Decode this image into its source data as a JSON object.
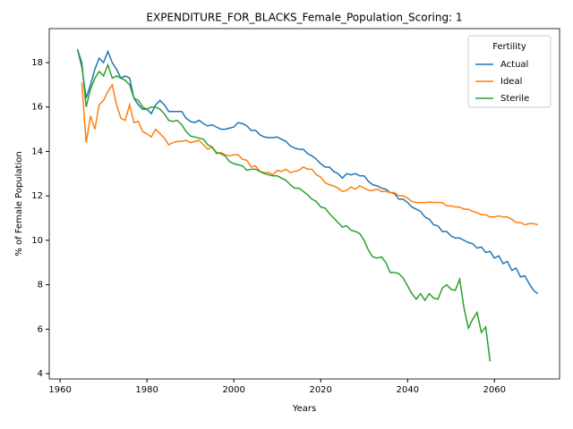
{
  "chart_data": {
    "type": "line",
    "title": "EXPENDITURE_FOR_BLACKS_Female_Population_Scoring: 1",
    "x_label": "Years",
    "y_label": "% of Female Population",
    "legend_title": "Fertility",
    "legend": "upper right",
    "x": [
      1964,
      1965,
      1966,
      1967,
      1968,
      1969,
      1970,
      1971,
      1972,
      1973,
      1974,
      1975,
      1976,
      1977,
      1978,
      1979,
      1980,
      1981,
      1982,
      1983,
      1984,
      1985,
      1986,
      1987,
      1988,
      1989,
      1990,
      1991,
      1992,
      1993,
      1994,
      1995,
      1996,
      1997,
      1998,
      1999,
      2000,
      2001,
      2002,
      2003,
      2004,
      2005,
      2006,
      2007,
      2008,
      2009,
      2010,
      2011,
      2012,
      2013,
      2014,
      2015,
      2016,
      2017,
      2018,
      2019,
      2020,
      2021,
      2022,
      2023,
      2024,
      2025,
      2026,
      2027,
      2028,
      2029,
      2030,
      2031,
      2032,
      2033,
      2034,
      2035,
      2036,
      2037,
      2038,
      2039,
      2040,
      2041,
      2042,
      2043,
      2044,
      2045,
      2046,
      2047,
      2048,
      2049,
      2050,
      2051,
      2052,
      2053,
      2054,
      2055,
      2056,
      2057,
      2058,
      2059,
      2060,
      2061,
      2062,
      2063,
      2064,
      2065,
      2066,
      2067,
      2068,
      2069,
      2070
    ],
    "series": [
      {
        "name": "Actual",
        "color": "#1f77b4",
        "values": [
          18.6,
          17.8,
          16.4,
          17.0,
          17.7,
          18.2,
          18.0,
          18.5,
          18.0,
          17.7,
          17.3,
          17.4,
          17.3,
          16.4,
          16.1,
          15.9,
          15.9,
          15.7,
          16.1,
          16.3,
          16.1,
          15.8,
          15.8,
          15.8,
          15.8,
          15.5,
          15.35,
          15.3,
          15.4,
          15.25,
          15.15,
          15.2,
          15.1,
          15.0,
          15.0,
          15.05,
          15.1,
          15.3,
          15.25,
          15.15,
          14.95,
          14.95,
          14.75,
          14.65,
          14.62,
          14.62,
          14.65,
          14.55,
          14.45,
          14.25,
          14.15,
          14.1,
          14.1,
          13.9,
          13.8,
          13.65,
          13.45,
          13.3,
          13.3,
          13.1,
          13.0,
          12.8,
          13.0,
          12.95,
          13.0,
          12.9,
          12.9,
          12.65,
          12.5,
          12.45,
          12.35,
          12.3,
          12.15,
          12.1,
          11.85,
          11.85,
          11.7,
          11.5,
          11.4,
          11.3,
          11.05,
          10.95,
          10.7,
          10.65,
          10.4,
          10.4,
          10.2,
          10.1,
          10.1,
          10.0,
          9.9,
          9.85,
          9.65,
          9.7,
          9.45,
          9.5,
          9.2,
          9.3,
          8.95,
          9.05,
          8.65,
          8.75,
          8.35,
          8.4,
          8.05,
          7.75,
          7.6
        ]
      },
      {
        "name": "Ideal",
        "color": "#ff7f0e",
        "values": [
          null,
          17.1,
          14.4,
          15.6,
          15.0,
          16.1,
          16.3,
          16.7,
          17.0,
          16.1,
          15.5,
          15.4,
          16.1,
          15.3,
          15.35,
          14.9,
          14.8,
          14.65,
          15.0,
          14.8,
          14.6,
          14.3,
          14.4,
          14.45,
          14.45,
          14.5,
          14.4,
          14.45,
          14.5,
          14.3,
          14.1,
          14.2,
          13.9,
          13.95,
          13.85,
          13.8,
          13.85,
          13.85,
          13.65,
          13.6,
          13.3,
          13.35,
          13.1,
          13.05,
          13.05,
          12.95,
          13.15,
          13.1,
          13.2,
          13.05,
          13.1,
          13.15,
          13.3,
          13.2,
          13.2,
          12.95,
          12.85,
          12.6,
          12.5,
          12.45,
          12.35,
          12.2,
          12.25,
          12.4,
          12.3,
          12.45,
          12.35,
          12.25,
          12.25,
          12.3,
          12.2,
          12.2,
          12.15,
          12.15,
          12.0,
          12.0,
          11.9,
          11.75,
          11.7,
          11.7,
          11.7,
          11.72,
          11.7,
          11.7,
          11.7,
          11.55,
          11.55,
          11.5,
          11.5,
          11.4,
          11.4,
          11.3,
          11.25,
          11.15,
          11.15,
          11.05,
          11.05,
          11.1,
          11.05,
          11.05,
          10.95,
          10.8,
          10.8,
          10.7,
          10.75,
          10.75,
          10.7
        ]
      },
      {
        "name": "Sterile",
        "color": "#2ca02c",
        "values": [
          18.6,
          18.0,
          16.0,
          16.8,
          17.3,
          17.6,
          17.4,
          17.9,
          17.3,
          17.4,
          17.3,
          17.2,
          17.0,
          16.4,
          16.3,
          16.0,
          15.9,
          16.0,
          16.0,
          15.9,
          15.7,
          15.4,
          15.35,
          15.4,
          15.2,
          14.9,
          14.7,
          14.65,
          14.6,
          14.55,
          14.3,
          14.2,
          13.95,
          13.9,
          13.8,
          13.55,
          13.45,
          13.4,
          13.35,
          13.15,
          13.2,
          13.2,
          13.1,
          13.0,
          12.95,
          12.9,
          12.9,
          12.8,
          12.7,
          12.5,
          12.35,
          12.35,
          12.2,
          12.05,
          11.85,
          11.75,
          11.5,
          11.45,
          11.2,
          11.0,
          10.8,
          10.6,
          10.65,
          10.45,
          10.4,
          10.3,
          10.0,
          9.55,
          9.25,
          9.2,
          9.25,
          9.0,
          8.55,
          8.55,
          8.5,
          8.3,
          7.95,
          7.6,
          7.35,
          7.6,
          7.3,
          7.6,
          7.4,
          7.35,
          7.85,
          8.0,
          7.8,
          7.75,
          8.25,
          6.95,
          6.05,
          6.45,
          6.75,
          5.85,
          6.1,
          4.55,
          null,
          null,
          null,
          null,
          null,
          null,
          null,
          null,
          null,
          null,
          null
        ]
      }
    ],
    "xlim": [
      1957.5,
      2075
    ],
    "xticks": [
      1960,
      1980,
      2000,
      2020,
      2040,
      2060
    ],
    "ylim": [
      3.76,
      19.53
    ],
    "yticks": [
      4,
      6,
      8,
      10,
      12,
      14,
      16,
      18
    ]
  }
}
